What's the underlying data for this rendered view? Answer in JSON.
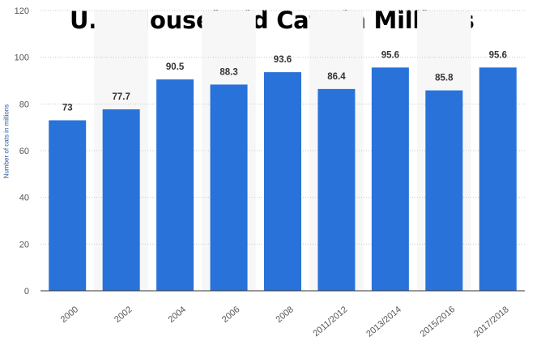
{
  "chart_data": {
    "type": "bar",
    "title": "U.S. Household Cats in Millions",
    "ylabel": "Number of cats in millions",
    "xlabel": "",
    "categories": [
      "2000",
      "2002",
      "2004",
      "2006",
      "2008",
      "2011/2012",
      "2013/2014",
      "2015/2016",
      "2017/2018"
    ],
    "values": [
      73,
      77.7,
      90.5,
      88.3,
      93.6,
      86.4,
      95.6,
      85.8,
      95.6
    ],
    "value_labels": [
      "73",
      "77.7",
      "90.5",
      "88.3",
      "93.6",
      "86.4",
      "95.6",
      "85.8",
      "95.6"
    ],
    "ylim": [
      0,
      120
    ],
    "yticks": [
      0,
      20,
      40,
      60,
      80,
      100,
      120
    ],
    "ytick_labels": [
      "0",
      "20",
      "40",
      "60",
      "80",
      "100",
      "120"
    ],
    "grid": true,
    "legend": "none",
    "bar_color": "#2872d9"
  }
}
